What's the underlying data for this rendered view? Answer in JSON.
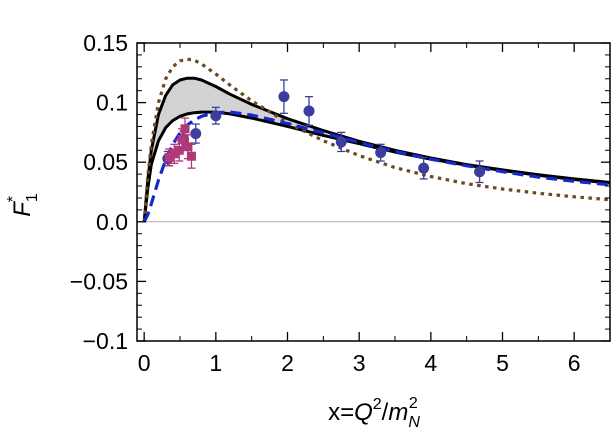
{
  "chart_data": {
    "type": "line",
    "title": "",
    "xlabel": "x=Q²/mₙ²",
    "xlabel_parts": {
      "lhs": "x=",
      "var1": "Q",
      "sup1": "2",
      "slash": "/",
      "var2": "m",
      "sub2": "N",
      "sup2": "2"
    },
    "ylabel": "F₁*",
    "ylabel_parts": {
      "base": "F",
      "sub": "1",
      "sup": "*"
    },
    "xlim": [
      -0.1,
      6.5
    ],
    "ylim": [
      -0.1,
      0.15
    ],
    "xticks": [
      0,
      1,
      2,
      3,
      4,
      5,
      6
    ],
    "xtick_labels": [
      "0",
      "1",
      "2",
      "3",
      "4",
      "5",
      "6"
    ],
    "yticks": [
      -0.1,
      -0.05,
      0.0,
      0.05,
      0.1,
      0.15
    ],
    "ytick_labels": [
      "−0.1",
      "−0.05",
      "0.0",
      "0.05",
      "0.1",
      "0.15"
    ],
    "grid": false,
    "zero_line": true,
    "colors": {
      "band_fill": "#d3d3d3",
      "band_edge": "#000000",
      "blue": "#1428d2",
      "brown": "#6b4a1f",
      "circles": "#3d3d9e",
      "squares": "#b03a78",
      "zero_line": "#aaaaaa"
    },
    "series": [
      {
        "name": "band-upper",
        "style": "solid-black",
        "x": [
          0,
          0.05,
          0.1,
          0.2,
          0.3,
          0.4,
          0.5,
          0.6,
          0.7,
          0.8,
          1.0,
          1.2,
          1.5,
          2.0,
          2.5,
          3.0,
          3.5,
          4.0,
          4.5,
          5.0,
          5.5,
          6.0,
          6.5
        ],
        "y": [
          0,
          0.035,
          0.06,
          0.09,
          0.106,
          0.115,
          0.119,
          0.1205,
          0.1205,
          0.119,
          0.1135,
          0.107,
          0.0985,
          0.0865,
          0.0765,
          0.0675,
          0.06,
          0.0535,
          0.048,
          0.0435,
          0.0395,
          0.036,
          0.033
        ]
      },
      {
        "name": "band-lower",
        "style": "solid-black",
        "x": [
          0,
          0.05,
          0.1,
          0.2,
          0.3,
          0.4,
          0.5,
          0.6,
          0.7,
          0.8,
          1.0,
          1.2,
          1.5,
          2.0,
          2.5,
          3.0,
          3.5,
          4.0,
          4.5,
          5.0,
          5.5,
          6.0,
          6.5
        ],
        "y": [
          0,
          0.028,
          0.048,
          0.068,
          0.079,
          0.085,
          0.0885,
          0.0905,
          0.0915,
          0.092,
          0.092,
          0.0905,
          0.087,
          0.08,
          0.0725,
          0.0655,
          0.0585,
          0.0525,
          0.0475,
          0.043,
          0.039,
          0.0355,
          0.0325
        ]
      },
      {
        "name": "blue-dashed",
        "style": "dashed-blue",
        "x": [
          0,
          0.05,
          0.1,
          0.2,
          0.3,
          0.4,
          0.5,
          0.6,
          0.7,
          0.8,
          1.0,
          1.2,
          1.5,
          2.0,
          2.5,
          3.0,
          3.5,
          4.0,
          4.5,
          5.0,
          5.5,
          6.0,
          6.5
        ],
        "y": [
          0,
          0.006,
          0.015,
          0.035,
          0.052,
          0.065,
          0.0745,
          0.081,
          0.0855,
          0.0885,
          0.0915,
          0.092,
          0.0895,
          0.0825,
          0.0745,
          0.0665,
          0.059,
          0.0525,
          0.047,
          0.042,
          0.0375,
          0.034,
          0.031
        ]
      },
      {
        "name": "brown-dotted",
        "style": "dotted-brown",
        "x": [
          0,
          0.05,
          0.1,
          0.2,
          0.3,
          0.4,
          0.5,
          0.6,
          0.7,
          0.8,
          1.0,
          1.2,
          1.5,
          2.0,
          2.5,
          3.0,
          3.5,
          4.0,
          4.5,
          5.0,
          5.5,
          6.0,
          6.5
        ],
        "y": [
          0,
          0.038,
          0.065,
          0.1,
          0.12,
          0.13,
          0.135,
          0.1365,
          0.1355,
          0.1325,
          0.124,
          0.1145,
          0.1015,
          0.083,
          0.068,
          0.0555,
          0.0455,
          0.038,
          0.032,
          0.0275,
          0.024,
          0.021,
          0.0185
        ]
      }
    ],
    "data_points": [
      {
        "name": "circles",
        "marker": "circle",
        "points": [
          {
            "x": 0.33,
            "y": 0.053,
            "err": 0.006
          },
          {
            "x": 0.55,
            "y": 0.069,
            "err": 0.007
          },
          {
            "x": 0.72,
            "y": 0.074,
            "err": 0.008
          },
          {
            "x": 1.0,
            "y": 0.089,
            "err": 0.007
          },
          {
            "x": 1.95,
            "y": 0.105,
            "err": 0.014
          },
          {
            "x": 2.3,
            "y": 0.093,
            "err": 0.012
          },
          {
            "x": 2.75,
            "y": 0.067,
            "err": 0.008
          },
          {
            "x": 3.3,
            "y": 0.058,
            "err": 0.007
          },
          {
            "x": 3.9,
            "y": 0.045,
            "err": 0.009
          },
          {
            "x": 4.68,
            "y": 0.042,
            "err": 0.009
          }
        ]
      },
      {
        "name": "squares",
        "marker": "square",
        "points": [
          {
            "x": 0.35,
            "y": 0.054,
            "err": 0.007
          },
          {
            "x": 0.42,
            "y": 0.057,
            "err": 0.008
          },
          {
            "x": 0.49,
            "y": 0.06,
            "err": 0.009
          },
          {
            "x": 0.53,
            "y": 0.069,
            "err": 0.009
          },
          {
            "x": 0.57,
            "y": 0.078,
            "err": 0.009
          },
          {
            "x": 0.61,
            "y": 0.063,
            "err": 0.01
          },
          {
            "x": 0.66,
            "y": 0.055,
            "err": 0.01
          }
        ]
      }
    ]
  }
}
